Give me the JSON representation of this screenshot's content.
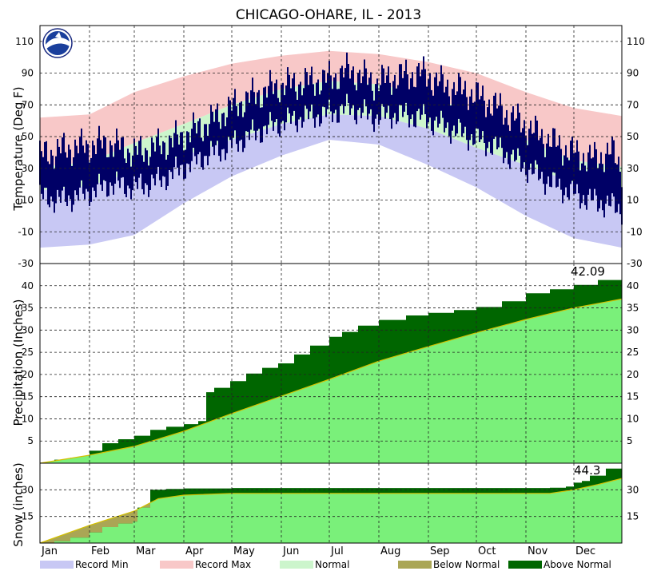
{
  "chart_data": {
    "type": "area",
    "title": "CHICAGO-OHARE, IL - 2013",
    "months": [
      "Jan",
      "Feb",
      "Mar",
      "Apr",
      "May",
      "Jun",
      "Jul",
      "Aug",
      "Sep",
      "Oct",
      "Nov",
      "Dec"
    ],
    "temperature": {
      "ylabel": "Temperature (Deg F)",
      "ylim": [
        -30,
        120
      ],
      "ticks": [
        -30,
        -10,
        10,
        30,
        50,
        70,
        90,
        110
      ],
      "tick_labels": [
        "-30",
        "-10",
        "10",
        "30",
        "50",
        "70",
        "90",
        "110"
      ],
      "series": [
        {
          "name": "Record Max",
          "color": "#f8c8c8",
          "x": [
            1,
            32,
            60,
            91,
            121,
            152,
            182,
            213,
            244,
            274,
            305,
            335,
            365
          ],
          "values": [
            62,
            64,
            78,
            88,
            96,
            101,
            104,
            102,
            97,
            90,
            78,
            68,
            63
          ]
        },
        {
          "name": "Normal",
          "color": "#ccf5cc",
          "x": [
            1,
            32,
            60,
            91,
            121,
            152,
            182,
            213,
            244,
            274,
            305,
            335,
            365
          ],
          "values": [
            31,
            34,
            46,
            58,
            70,
            80,
            85,
            83,
            76,
            64,
            48,
            35,
            31
          ]
        },
        {
          "name": "Normal",
          "color": "#ccf5cc",
          "x": [
            1,
            32,
            60,
            91,
            121,
            152,
            182,
            213,
            244,
            274,
            305,
            335,
            365
          ],
          "values": [
            16,
            19,
            28,
            38,
            48,
            58,
            64,
            63,
            55,
            43,
            32,
            21,
            16
          ]
        },
        {
          "name": "Record Min",
          "color": "#c8c8f4",
          "x": [
            1,
            32,
            60,
            91,
            121,
            152,
            182,
            213,
            244,
            274,
            305,
            335,
            365
          ],
          "values": [
            -20,
            -18,
            -12,
            8,
            25,
            38,
            48,
            45,
            32,
            18,
            0,
            -14,
            -20
          ]
        },
        {
          "name": "Observed High",
          "color": "#000066",
          "x": [
            1,
            15,
            30,
            45,
            60,
            75,
            90,
            105,
            120,
            135,
            150,
            165,
            180,
            195,
            210,
            225,
            240,
            255,
            270,
            285,
            300,
            315,
            330,
            345,
            360,
            365
          ],
          "values": [
            38,
            42,
            44,
            46,
            40,
            44,
            50,
            58,
            68,
            76,
            82,
            84,
            86,
            92,
            84,
            88,
            90,
            82,
            78,
            70,
            60,
            50,
            42,
            36,
            40,
            30
          ]
        },
        {
          "name": "Observed Low",
          "color": "#000066",
          "x": [
            1,
            15,
            30,
            45,
            60,
            75,
            90,
            105,
            120,
            135,
            150,
            165,
            180,
            195,
            210,
            225,
            240,
            255,
            270,
            285,
            300,
            315,
            330,
            345,
            360,
            365
          ],
          "values": [
            12,
            10,
            14,
            20,
            18,
            22,
            30,
            38,
            44,
            52,
            58,
            62,
            64,
            68,
            62,
            64,
            62,
            56,
            50,
            44,
            34,
            24,
            16,
            10,
            6,
            4
          ]
        }
      ]
    },
    "precipitation": {
      "ylabel": "Precipitation (Inches)",
      "ylim": [
        0,
        45
      ],
      "ticks": [
        5,
        10,
        15,
        20,
        25,
        30,
        35,
        40
      ],
      "tick_labels": [
        "5",
        "10",
        "15",
        "20",
        "25",
        "30",
        "35",
        "40"
      ],
      "total_label": "42.09",
      "series": [
        {
          "name": "Normal",
          "color": "#7af07a",
          "x": [
            1,
            32,
            60,
            91,
            121,
            152,
            182,
            213,
            244,
            274,
            305,
            335,
            365
          ],
          "values": [
            0,
            1.8,
            3.8,
            7.2,
            11.2,
            15.1,
            18.9,
            23.0,
            26.3,
            29.4,
            32.4,
            35.0,
            37.0
          ]
        },
        {
          "name": "Observed",
          "color": "#006600",
          "x": [
            1,
            10,
            20,
            32,
            40,
            50,
            60,
            70,
            80,
            91,
            100,
            105,
            110,
            120,
            130,
            140,
            150,
            160,
            170,
            182,
            190,
            200,
            213,
            230,
            244,
            260,
            274,
            290,
            305,
            320,
            335,
            350,
            365
          ],
          "values": [
            0,
            0.8,
            1.2,
            2.8,
            4.5,
            5.4,
            6.2,
            7.5,
            8.2,
            8.8,
            9.5,
            16,
            17,
            18.5,
            20.2,
            21.5,
            22.5,
            24.5,
            26.5,
            28.5,
            29.6,
            31,
            32.3,
            33.3,
            33.9,
            34.5,
            35.2,
            36.5,
            38.3,
            39.2,
            40.2,
            41.3,
            42.09
          ]
        }
      ]
    },
    "snow": {
      "ylabel": "Snow (inches)",
      "ylim": [
        0,
        45
      ],
      "ticks": [
        15,
        30
      ],
      "tick_labels": [
        "15",
        "30"
      ],
      "total_label": "44.3",
      "series": [
        {
          "name": "Normal",
          "color": "#7af07a",
          "x": [
            1,
            32,
            60,
            75,
            91,
            121,
            305,
            320,
            335,
            350,
            365
          ],
          "values": [
            0,
            10,
            18,
            25,
            27,
            28,
            28,
            28,
            30,
            33,
            36.4
          ]
        },
        {
          "name": "Observed",
          "color": "#006600",
          "x": [
            1,
            10,
            20,
            32,
            40,
            50,
            59,
            62,
            70,
            80,
            91,
            121,
            305,
            320,
            330,
            335,
            340,
            345,
            355,
            365
          ],
          "values": [
            0,
            1,
            3,
            6,
            9,
            11,
            12,
            20,
            30,
            30.5,
            30.8,
            31,
            31,
            31.2,
            31.8,
            34,
            35,
            38,
            42,
            44.3
          ]
        }
      ]
    },
    "legend": [
      {
        "label": "Record Min",
        "color": "#c8c8f4"
      },
      {
        "label": "Record Max",
        "color": "#f8c8c8"
      },
      {
        "label": "Normal",
        "color": "#ccf5cc"
      },
      {
        "label": "Below Normal",
        "color": "#aaa655"
      },
      {
        "label": "Above Normal",
        "color": "#006600"
      }
    ],
    "grid": true,
    "legend_position": "bottom"
  }
}
